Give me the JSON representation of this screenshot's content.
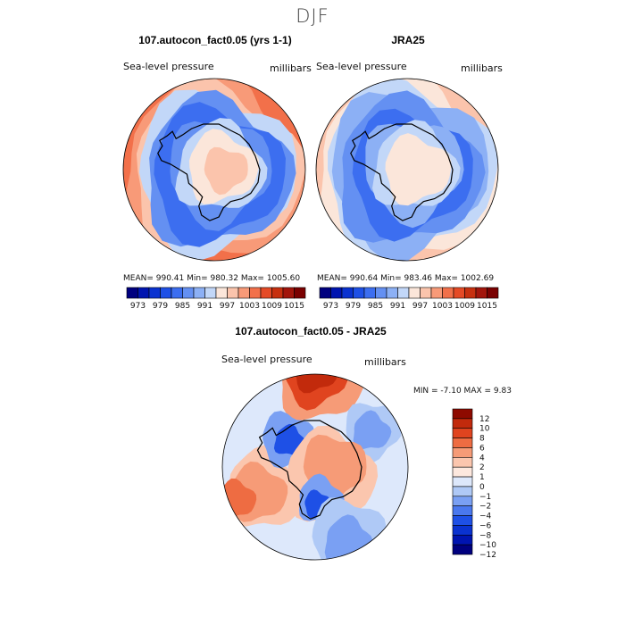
{
  "page_title": "DJF",
  "chart_data": [
    {
      "type": "contour-map",
      "projection": "south-polar-stereographic",
      "title": "107.autocon_fact0.05 (yrs 1-1)",
      "left_label": "Sea-level pressure",
      "right_label": "millibars",
      "stats": {
        "mean": "990.41",
        "min": "980.32",
        "max": "1005.60"
      },
      "stats_text": "MEAN= 990.41   Min= 980.32   Max= 1005.60",
      "colorbar": {
        "orientation": "horizontal",
        "levels": [
          973,
          976,
          979,
          982,
          985,
          988,
          991,
          994,
          997,
          1000,
          1003,
          1006,
          1009,
          1012,
          1015
        ],
        "tick_labels": [
          "973",
          "979",
          "985",
          "991",
          "997",
          "1003",
          "1009",
          "1015"
        ]
      }
    },
    {
      "type": "contour-map",
      "projection": "south-polar-stereographic",
      "title": "JRA25",
      "left_label": "Sea-level pressure",
      "right_label": "millibars",
      "stats": {
        "mean": "990.64",
        "min": "983.46",
        "max": "1002.69"
      },
      "stats_text": "MEAN= 990.64   Min= 983.46   Max= 1002.69",
      "colorbar": {
        "orientation": "horizontal",
        "levels": [
          973,
          976,
          979,
          982,
          985,
          988,
          991,
          994,
          997,
          1000,
          1003,
          1006,
          1009,
          1012,
          1015
        ],
        "tick_labels": [
          "973",
          "979",
          "985",
          "991",
          "997",
          "1003",
          "1009",
          "1015"
        ]
      }
    },
    {
      "type": "contour-map",
      "projection": "south-polar-stereographic",
      "title": "107.autocon_fact0.05 - JRA25",
      "left_label": "Sea-level pressure",
      "right_label": "millibars",
      "stats": {
        "min": "-7.10",
        "max": "9.83"
      },
      "stats_text": "MIN =   -7.10 MAX =    9.83",
      "colorbar": {
        "orientation": "vertical",
        "levels": [
          -12,
          -10,
          -8,
          -6,
          -4,
          -2,
          -1,
          0,
          1,
          2,
          4,
          6,
          8,
          10,
          12
        ],
        "tick_labels": [
          "12",
          "10",
          "8",
          "6",
          "4",
          "2",
          "1",
          "0",
          "−1",
          "−2",
          "−4",
          "−6",
          "−8",
          "−10",
          "−12"
        ]
      }
    }
  ],
  "colors": {
    "abs_scale": [
      "#00007f",
      "#0014b0",
      "#0a32d0",
      "#1e50e6",
      "#3c6ef0",
      "#6490f2",
      "#8cb0f5",
      "#c2d7f8",
      "#fbe6da",
      "#fbc4ac",
      "#f89a78",
      "#f2704a",
      "#e54a26",
      "#c7300f",
      "#a2150b",
      "#7a0000"
    ],
    "diff_scale": [
      "#00007f",
      "#0014b0",
      "#0a32d0",
      "#1e50e6",
      "#4a78ee",
      "#7aa0f3",
      "#afc9f6",
      "#dde8fb",
      "#fde8de",
      "#fbc6ae",
      "#f69b77",
      "#ee6c42",
      "#e0441f",
      "#c22a0c",
      "#8e0a00"
    ],
    "land_outline": "#000000"
  }
}
